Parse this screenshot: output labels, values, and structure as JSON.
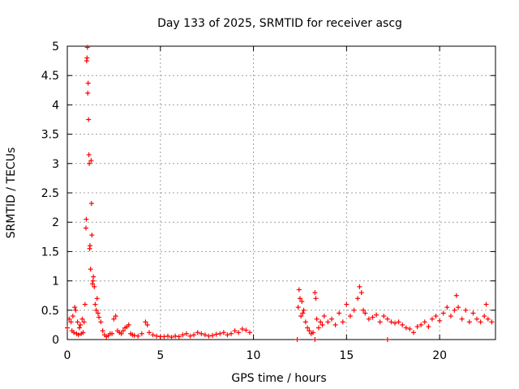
{
  "chart_data": {
    "type": "scatter",
    "title": "Day 133 of 2025, SRMTID for receiver ascg",
    "xlabel": "GPS time / hours",
    "ylabel": "SRMTID / TECUs",
    "xlim": [
      0,
      23
    ],
    "ylim": [
      0,
      5
    ],
    "xticks": [
      0,
      5,
      10,
      15,
      20
    ],
    "yticks": [
      0,
      0.5,
      1,
      1.5,
      2,
      2.5,
      3,
      3.5,
      4,
      4.5,
      5
    ],
    "xtick_labels": [
      "0",
      "5",
      "10",
      "15",
      "20"
    ],
    "ytick_labels": [
      "0",
      "0.5",
      "1",
      "1.5",
      "2",
      "2.5",
      "3",
      "3.5",
      "4",
      "4.5",
      "5"
    ],
    "grid": true,
    "marker": "+",
    "color": "#ff0000",
    "series": [
      {
        "name": "SRMTID",
        "x": [
          0.0,
          0.1,
          0.2,
          0.25,
          0.3,
          0.35,
          0.4,
          0.45,
          0.5,
          0.55,
          0.6,
          0.65,
          0.7,
          0.75,
          0.8,
          0.85,
          0.9,
          0.95,
          1.0,
          1.02,
          1.04,
          1.06,
          1.08,
          1.1,
          1.12,
          1.14,
          1.16,
          1.18,
          1.2,
          1.22,
          1.25,
          1.28,
          1.3,
          1.32,
          1.35,
          1.38,
          1.4,
          1.45,
          1.5,
          1.55,
          1.6,
          1.65,
          1.7,
          1.8,
          1.9,
          2.0,
          2.1,
          2.2,
          2.3,
          2.4,
          2.5,
          2.6,
          2.7,
          2.8,
          2.9,
          3.0,
          3.1,
          3.2,
          3.3,
          3.4,
          3.5,
          3.6,
          3.8,
          4.0,
          4.2,
          4.3,
          4.4,
          4.6,
          4.8,
          5.0,
          5.2,
          5.4,
          5.6,
          5.8,
          6.0,
          6.2,
          6.4,
          6.6,
          6.8,
          7.0,
          7.2,
          7.4,
          7.6,
          7.8,
          8.0,
          8.2,
          8.4,
          8.6,
          8.8,
          9.0,
          9.2,
          9.4,
          9.6,
          9.8,
          12.4,
          12.45,
          12.5,
          12.55,
          12.6,
          12.65,
          12.7,
          12.8,
          12.9,
          13.0,
          13.1,
          13.2,
          13.3,
          13.35,
          13.4,
          13.5,
          13.6,
          13.7,
          13.8,
          14.0,
          14.2,
          14.4,
          14.6,
          14.8,
          15.0,
          15.2,
          15.4,
          15.6,
          15.7,
          15.8,
          15.9,
          16.0,
          16.2,
          16.4,
          16.6,
          16.8,
          17.0,
          17.2,
          17.4,
          17.6,
          17.8,
          18.0,
          18.2,
          18.4,
          18.6,
          18.8,
          19.0,
          19.2,
          19.4,
          19.6,
          19.8,
          20.0,
          20.2,
          20.4,
          20.6,
          20.8,
          20.9,
          21.0,
          21.2,
          21.4,
          21.6,
          21.8,
          22.0,
          22.2,
          22.4,
          22.5,
          22.6,
          22.8,
          12.35,
          13.3,
          17.2
        ],
        "y": [
          0.2,
          0.35,
          0.3,
          0.15,
          0.4,
          0.12,
          0.55,
          0.5,
          0.1,
          0.3,
          0.08,
          0.2,
          0.25,
          0.1,
          0.35,
          0.12,
          0.3,
          0.6,
          1.9,
          2.05,
          4.75,
          4.8,
          4.98,
          4.2,
          4.37,
          3.75,
          3.15,
          3.0,
          1.55,
          1.6,
          1.2,
          3.05,
          2.32,
          1.78,
          0.95,
          1.0,
          1.07,
          0.9,
          0.6,
          0.5,
          0.7,
          0.45,
          0.38,
          0.3,
          0.15,
          0.08,
          0.05,
          0.07,
          0.1,
          0.1,
          0.35,
          0.4,
          0.15,
          0.12,
          0.1,
          0.15,
          0.2,
          0.22,
          0.25,
          0.1,
          0.08,
          0.07,
          0.06,
          0.1,
          0.3,
          0.25,
          0.12,
          0.08,
          0.06,
          0.05,
          0.05,
          0.06,
          0.04,
          0.06,
          0.05,
          0.08,
          0.1,
          0.06,
          0.08,
          0.12,
          0.1,
          0.08,
          0.06,
          0.07,
          0.09,
          0.1,
          0.12,
          0.08,
          0.1,
          0.15,
          0.12,
          0.18,
          0.16,
          0.12,
          0.55,
          0.85,
          0.7,
          0.4,
          0.65,
          0.45,
          0.5,
          0.3,
          0.2,
          0.15,
          0.1,
          0.12,
          0.8,
          0.7,
          0.35,
          0.2,
          0.3,
          0.25,
          0.4,
          0.3,
          0.35,
          0.25,
          0.45,
          0.3,
          0.6,
          0.4,
          0.5,
          0.7,
          0.9,
          0.8,
          0.5,
          0.45,
          0.35,
          0.38,
          0.42,
          0.3,
          0.4,
          0.35,
          0.3,
          0.28,
          0.3,
          0.25,
          0.2,
          0.18,
          0.12,
          0.22,
          0.25,
          0.3,
          0.22,
          0.35,
          0.4,
          0.32,
          0.45,
          0.55,
          0.4,
          0.5,
          0.75,
          0.55,
          0.35,
          0.5,
          0.3,
          0.45,
          0.35,
          0.3,
          0.4,
          0.6,
          0.35,
          0.3,
          0.0,
          0.0,
          0.0
        ]
      }
    ]
  }
}
